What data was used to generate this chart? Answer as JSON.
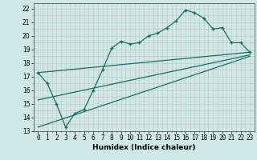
{
  "xlabel": "Humidex (Indice chaleur)",
  "bg_color": "#cde8e5",
  "line_color": "#1a6e66",
  "xlim": [
    -0.5,
    23.5
  ],
  "ylim": [
    13,
    22.4
  ],
  "xticks": [
    0,
    1,
    2,
    3,
    4,
    5,
    6,
    7,
    8,
    9,
    10,
    11,
    12,
    13,
    14,
    15,
    16,
    17,
    18,
    19,
    20,
    21,
    22,
    23
  ],
  "yticks": [
    13,
    14,
    15,
    16,
    17,
    18,
    19,
    20,
    21,
    22
  ],
  "curve1_x": [
    0,
    1,
    2,
    3,
    4,
    5,
    6,
    7,
    8,
    9,
    10,
    11,
    12,
    13,
    14,
    15,
    16,
    17,
    18,
    19,
    20,
    21,
    22,
    23
  ],
  "curve1_y": [
    17.3,
    16.5,
    15.0,
    13.3,
    14.3,
    14.6,
    16.0,
    17.5,
    19.1,
    19.6,
    19.4,
    19.5,
    20.0,
    20.2,
    20.6,
    21.1,
    21.9,
    21.7,
    21.3,
    20.5,
    20.6,
    19.5,
    19.5,
    18.8
  ],
  "line1_x": [
    0,
    23
  ],
  "line1_y": [
    17.3,
    18.8
  ],
  "line2_x": [
    0,
    23
  ],
  "line2_y": [
    13.3,
    18.5
  ],
  "line3_x": [
    0,
    23
  ],
  "line3_y": [
    15.3,
    18.6
  ],
  "grid_major_color": "#b8d5d2",
  "grid_minor_color": "#cce0de"
}
